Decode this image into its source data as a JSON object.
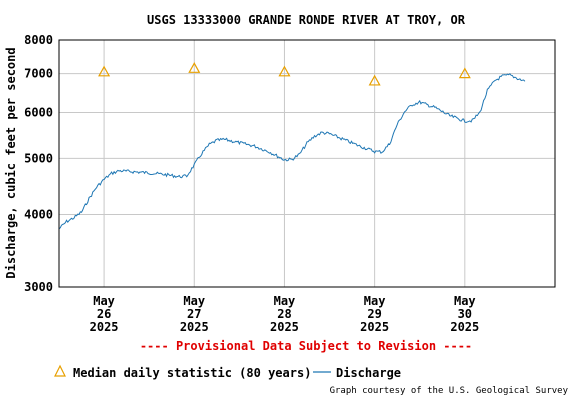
{
  "chart_data": {
    "type": "line",
    "title": "USGS 13333000 GRANDE RONDE RIVER AT TROY, OR",
    "ylabel": "Discharge, cubic feet per second",
    "xlabel": "",
    "yscale": "log",
    "ylim": [
      3000,
      8000
    ],
    "xlim": [
      "2025-05-25 12:00",
      "2025-05-31 00:00"
    ],
    "y_ticks": [
      "3000",
      "4000",
      "5000",
      "6000",
      "7000",
      "8000"
    ],
    "y_tick_values": [
      3000,
      4000,
      5000,
      6000,
      7000,
      8000
    ],
    "x_ticks": [
      {
        "month": "May",
        "day": "26",
        "year": "2025",
        "at": "2025-05-26 00:00"
      },
      {
        "month": "May",
        "day": "27",
        "year": "2025",
        "at": "2025-05-27 00:00"
      },
      {
        "month": "May",
        "day": "28",
        "year": "2025",
        "at": "2025-05-28 00:00"
      },
      {
        "month": "May",
        "day": "29",
        "year": "2025",
        "at": "2025-05-29 00:00"
      },
      {
        "month": "May",
        "day": "30",
        "year": "2025",
        "at": "2025-05-30 00:00"
      }
    ],
    "grid": true,
    "series": [
      {
        "name": "Discharge",
        "color": "#1f77b4",
        "points": [
          [
            "2025-05-25 12:00",
            3780
          ],
          [
            "2025-05-25 14:00",
            3890
          ],
          [
            "2025-05-25 16:00",
            3950
          ],
          [
            "2025-05-25 18:00",
            4040
          ],
          [
            "2025-05-25 20:00",
            4260
          ],
          [
            "2025-05-25 22:00",
            4460
          ],
          [
            "2025-05-26 00:00",
            4600
          ],
          [
            "2025-05-26 02:00",
            4710
          ],
          [
            "2025-05-26 04:00",
            4760
          ],
          [
            "2025-05-26 08:00",
            4740
          ],
          [
            "2025-05-26 12:00",
            4720
          ],
          [
            "2025-05-26 16:00",
            4690
          ],
          [
            "2025-05-26 20:00",
            4650
          ],
          [
            "2025-05-26 22:00",
            4660
          ],
          [
            "2025-05-27 00:00",
            4870
          ],
          [
            "2025-05-27 02:00",
            5100
          ],
          [
            "2025-05-27 04:00",
            5280
          ],
          [
            "2025-05-27 06:00",
            5370
          ],
          [
            "2025-05-27 08:00",
            5390
          ],
          [
            "2025-05-27 12:00",
            5320
          ],
          [
            "2025-05-27 16:00",
            5250
          ],
          [
            "2025-05-27 20:00",
            5130
          ],
          [
            "2025-05-28 00:00",
            4970
          ],
          [
            "2025-05-28 02:00",
            4980
          ],
          [
            "2025-05-28 04:00",
            5080
          ],
          [
            "2025-05-28 06:00",
            5310
          ],
          [
            "2025-05-28 08:00",
            5460
          ],
          [
            "2025-05-28 10:00",
            5540
          ],
          [
            "2025-05-28 12:00",
            5510
          ],
          [
            "2025-05-28 16:00",
            5380
          ],
          [
            "2025-05-28 20:00",
            5250
          ],
          [
            "2025-05-29 00:00",
            5140
          ],
          [
            "2025-05-29 02:00",
            5130
          ],
          [
            "2025-05-29 04:00",
            5300
          ],
          [
            "2025-05-29 06:00",
            5720
          ],
          [
            "2025-05-29 08:00",
            6020
          ],
          [
            "2025-05-29 10:00",
            6190
          ],
          [
            "2025-05-29 12:00",
            6250
          ],
          [
            "2025-05-29 16:00",
            6120
          ],
          [
            "2025-05-29 20:00",
            5920
          ],
          [
            "2025-05-30 00:00",
            5800
          ],
          [
            "2025-05-30 02:00",
            5810
          ],
          [
            "2025-05-30 04:00",
            6000
          ],
          [
            "2025-05-30 06:00",
            6540
          ],
          [
            "2025-05-30 08:00",
            6810
          ],
          [
            "2025-05-30 10:00",
            6930
          ],
          [
            "2025-05-30 12:00",
            6960
          ],
          [
            "2025-05-30 14:00",
            6870
          ],
          [
            "2025-05-30 16:00",
            6790
          ]
        ]
      },
      {
        "name": "Median daily statistic (80 years)",
        "marker": "triangle",
        "color": "#e8a000",
        "points": [
          [
            "2025-05-26 00:00",
            7050
          ],
          [
            "2025-05-27 00:00",
            7150
          ],
          [
            "2025-05-28 00:00",
            7050
          ],
          [
            "2025-05-29 00:00",
            6800
          ],
          [
            "2025-05-30 00:00",
            7000
          ]
        ]
      }
    ],
    "annotations": [
      "---- Provisional Data Subject to Revision ----"
    ],
    "legend": {
      "placement": "bottom",
      "entries": [
        "Median daily statistic (80 years)",
        "Discharge"
      ]
    },
    "credit": "Graph courtesy of the U.S. Geological Survey"
  }
}
